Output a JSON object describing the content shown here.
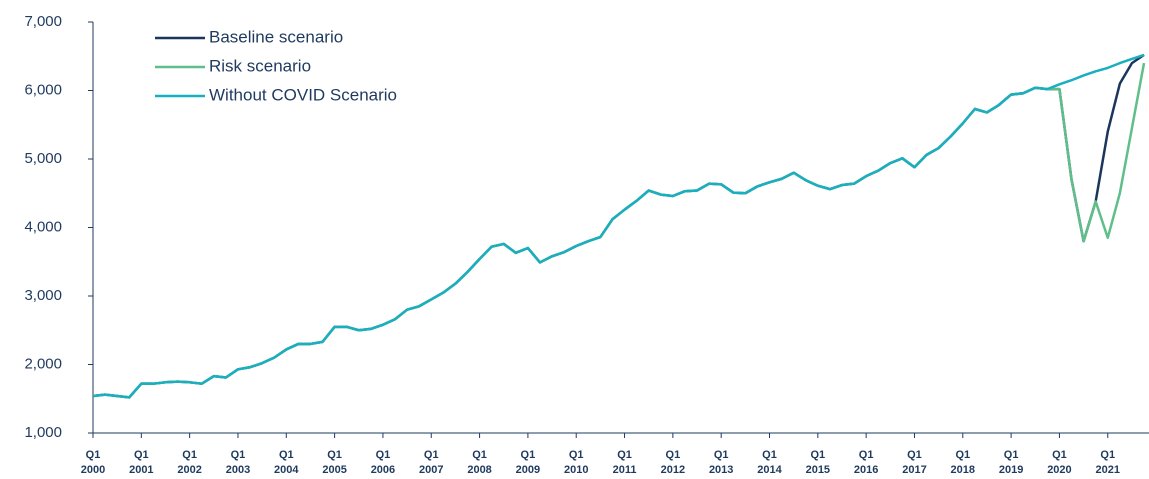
{
  "chart_data": {
    "type": "line",
    "categories": [
      "Q1 2000",
      null,
      null,
      null,
      "Q1 2001",
      null,
      null,
      null,
      "Q1 2002",
      null,
      null,
      null,
      "Q1 2003",
      null,
      null,
      null,
      "Q1 2004",
      null,
      null,
      null,
      "Q1 2005",
      null,
      null,
      null,
      "Q1 2006",
      null,
      null,
      null,
      "Q1 2007",
      null,
      null,
      null,
      "Q1 2008",
      null,
      null,
      null,
      "Q1 2009",
      null,
      null,
      null,
      "Q1 2010",
      null,
      null,
      null,
      "Q1 2011",
      null,
      null,
      null,
      "Q1 2012",
      null,
      null,
      null,
      "Q1 2013",
      null,
      null,
      null,
      "Q1 2014",
      null,
      null,
      null,
      "Q1 2015",
      null,
      null,
      null,
      "Q1 2016",
      null,
      null,
      null,
      "Q1 2017",
      null,
      null,
      null,
      "Q1 2018",
      null,
      null,
      null,
      "Q1 2019",
      null,
      null,
      null,
      "Q1 2020",
      null,
      null,
      null,
      "Q1 2021",
      null,
      null,
      null
    ],
    "series": [
      {
        "name": "Baseline scenario",
        "color": "#1b365d",
        "values": [
          1540,
          1560,
          1540,
          1520,
          1720,
          1720,
          1740,
          1750,
          1740,
          1720,
          1830,
          1810,
          1930,
          1960,
          2020,
          2100,
          2220,
          2300,
          2300,
          2330,
          2550,
          2550,
          2500,
          2520,
          2580,
          2660,
          2800,
          2850,
          2950,
          3050,
          3180,
          3350,
          3540,
          3720,
          3760,
          3630,
          3700,
          3490,
          3580,
          3640,
          3730,
          3800,
          3860,
          4120,
          4260,
          4390,
          4540,
          4480,
          4460,
          4530,
          4540,
          4640,
          4630,
          4510,
          4500,
          4600,
          4660,
          4710,
          4800,
          4690,
          4610,
          4560,
          4620,
          4640,
          4750,
          4830,
          4940,
          5010,
          4880,
          5060,
          5160,
          5330,
          5520,
          5730,
          5680,
          5790,
          5940,
          5960,
          6040,
          6020,
          6020,
          4700,
          3800,
          4380,
          5400,
          6100,
          6400,
          6520
        ]
      },
      {
        "name": "Risk scenario",
        "color": "#5fbf8a",
        "values": [
          1540,
          1560,
          1540,
          1520,
          1720,
          1720,
          1740,
          1750,
          1740,
          1720,
          1830,
          1810,
          1930,
          1960,
          2020,
          2100,
          2220,
          2300,
          2300,
          2330,
          2550,
          2550,
          2500,
          2520,
          2580,
          2660,
          2800,
          2850,
          2950,
          3050,
          3180,
          3350,
          3540,
          3720,
          3760,
          3630,
          3700,
          3490,
          3580,
          3640,
          3730,
          3800,
          3860,
          4120,
          4260,
          4390,
          4540,
          4480,
          4460,
          4530,
          4540,
          4640,
          4630,
          4510,
          4500,
          4600,
          4660,
          4710,
          4800,
          4690,
          4610,
          4560,
          4620,
          4640,
          4750,
          4830,
          4940,
          5010,
          4880,
          5060,
          5160,
          5330,
          5520,
          5730,
          5680,
          5790,
          5940,
          5960,
          6040,
          6020,
          6020,
          4700,
          3800,
          4380,
          3850,
          4500,
          5450,
          6400
        ]
      },
      {
        "name": "Without COVID Scenario",
        "color": "#1aafbf",
        "values": [
          1540,
          1560,
          1540,
          1520,
          1720,
          1720,
          1740,
          1750,
          1740,
          1720,
          1830,
          1810,
          1930,
          1960,
          2020,
          2100,
          2220,
          2300,
          2300,
          2330,
          2550,
          2550,
          2500,
          2520,
          2580,
          2660,
          2800,
          2850,
          2950,
          3050,
          3180,
          3350,
          3540,
          3720,
          3760,
          3630,
          3700,
          3490,
          3580,
          3640,
          3730,
          3800,
          3860,
          4120,
          4260,
          4390,
          4540,
          4480,
          4460,
          4530,
          4540,
          4640,
          4630,
          4510,
          4500,
          4600,
          4660,
          4710,
          4800,
          4690,
          4610,
          4560,
          4620,
          4640,
          4750,
          4830,
          4940,
          5010,
          4880,
          5060,
          5160,
          5330,
          5520,
          5730,
          5680,
          5790,
          5940,
          5960,
          6040,
          6020,
          6090,
          6150,
          6220,
          6280,
          6330,
          6400,
          6460,
          6520
        ]
      }
    ],
    "ylim": [
      1000,
      7000
    ],
    "yticks": [
      {
        "value": 1000,
        "label": "1,000"
      },
      {
        "value": 2000,
        "label": "2,000"
      },
      {
        "value": 3000,
        "label": "3,000"
      },
      {
        "value": 4000,
        "label": "4,000"
      },
      {
        "value": 5000,
        "label": "5,000"
      },
      {
        "value": 6000,
        "label": "6,000"
      },
      {
        "value": 7000,
        "label": "7,000"
      }
    ],
    "legend": "upper left"
  }
}
